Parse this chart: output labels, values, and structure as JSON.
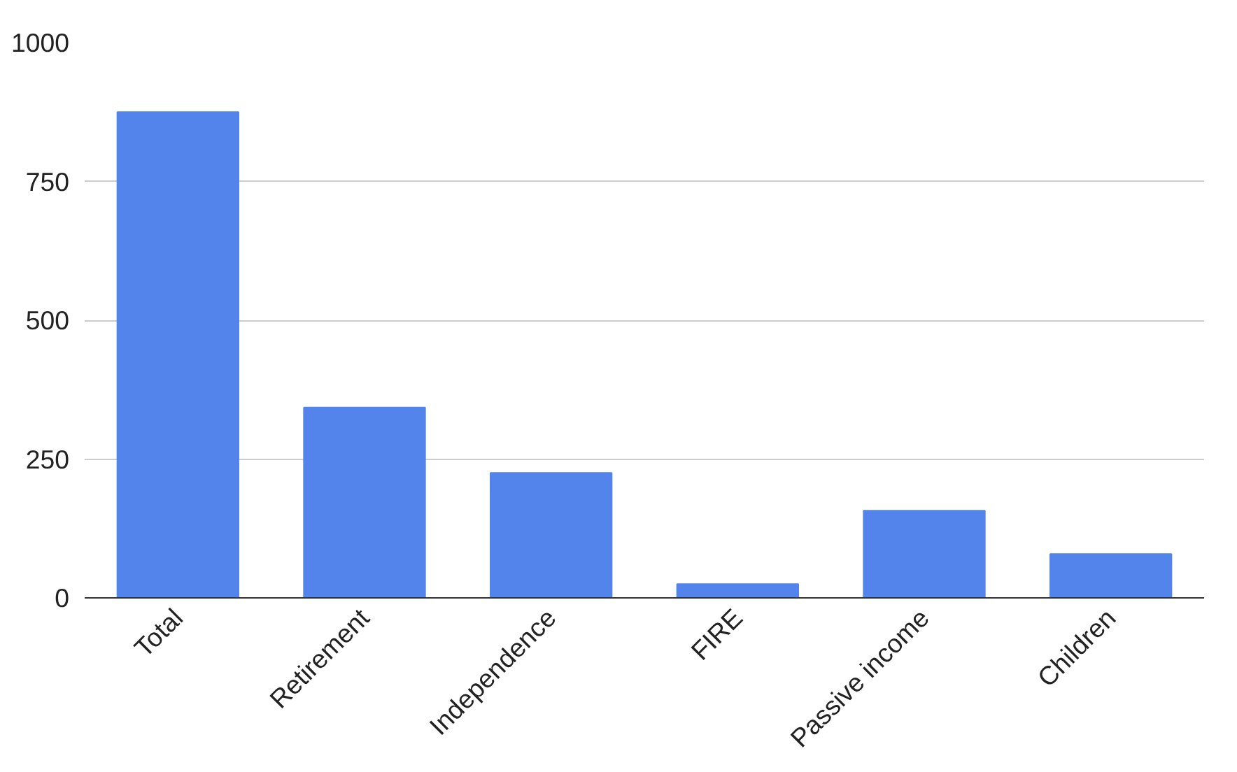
{
  "chart_data": {
    "type": "bar",
    "categories": [
      "Total",
      "Retirement",
      "Independence",
      "FIRE",
      "Passive income",
      "Children"
    ],
    "values": [
      875,
      343,
      225,
      25,
      157,
      79
    ],
    "color": "#5384eb",
    "ylim": [
      0,
      1000
    ],
    "yticks": [
      0,
      250,
      500,
      750,
      1000
    ],
    "grid": "y"
  }
}
